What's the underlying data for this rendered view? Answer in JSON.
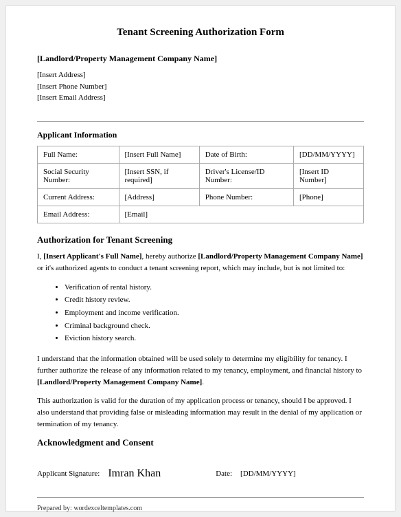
{
  "title": "Tenant Screening Authorization Form",
  "company": {
    "name": "[Landlord/Property Management Company Name]",
    "address": "[Insert Address]",
    "phone": "[Insert Phone Number]",
    "email": "[Insert Email Address]"
  },
  "applicant_section_heading": "Applicant Information",
  "table": {
    "row1": {
      "label1": "Full Name:",
      "value1": "[Insert Full Name]",
      "label2": "Date of Birth:",
      "value2": "[DD/MM/YYYY]"
    },
    "row2": {
      "label1": "Social Security Number:",
      "value1": "[Insert SSN, if required]",
      "label2": "Driver's License/ID Number:",
      "value2": "[Insert ID Number]"
    },
    "row3": {
      "label1": "Current Address:",
      "value1": "[Address]",
      "label2": "Phone Number:",
      "value2": "[Phone]"
    },
    "row4": {
      "label1": "Email Address:",
      "value1": "[Email]"
    }
  },
  "auth_heading": "Authorization for Tenant Screening",
  "auth_p1_prefix": "I, ",
  "auth_p1_applicant": "[Insert Applicant's Full Name]",
  "auth_p1_mid": ", hereby authorize ",
  "auth_p1_company": "[Landlord/Property Management Company Name]",
  "auth_p1_suffix": " or it's authorized agents to conduct a tenant screening report, which may include, but is not limited to:",
  "auth_items": {
    "0": "Verification of rental history.",
    "1": "Credit history review.",
    "2": "Employment and income verification.",
    "3": "Criminal background check.",
    "4": "Eviction history search."
  },
  "auth_p2_prefix": "I understand that the information obtained will be used solely to determine my eligibility for tenancy. I further authorize the release of any information related to my tenancy, employment, and financial history to ",
  "auth_p2_company": "[Landlord/Property Management Company Name]",
  "auth_p2_suffix": ".",
  "auth_p3": "This authorization is valid for the duration of my application process or tenancy, should I be approved. I also understand that providing false or misleading information may result in the denial of my application or termination of my tenancy.",
  "ack_heading": "Acknowledgment and Consent",
  "signature": {
    "label": "Applicant Signature:",
    "value": "Imran Khan",
    "date_label": "Date:",
    "date_value": "[DD/MM/YYYY]"
  },
  "footer": "Prepared by: wordexceltemplates.com"
}
